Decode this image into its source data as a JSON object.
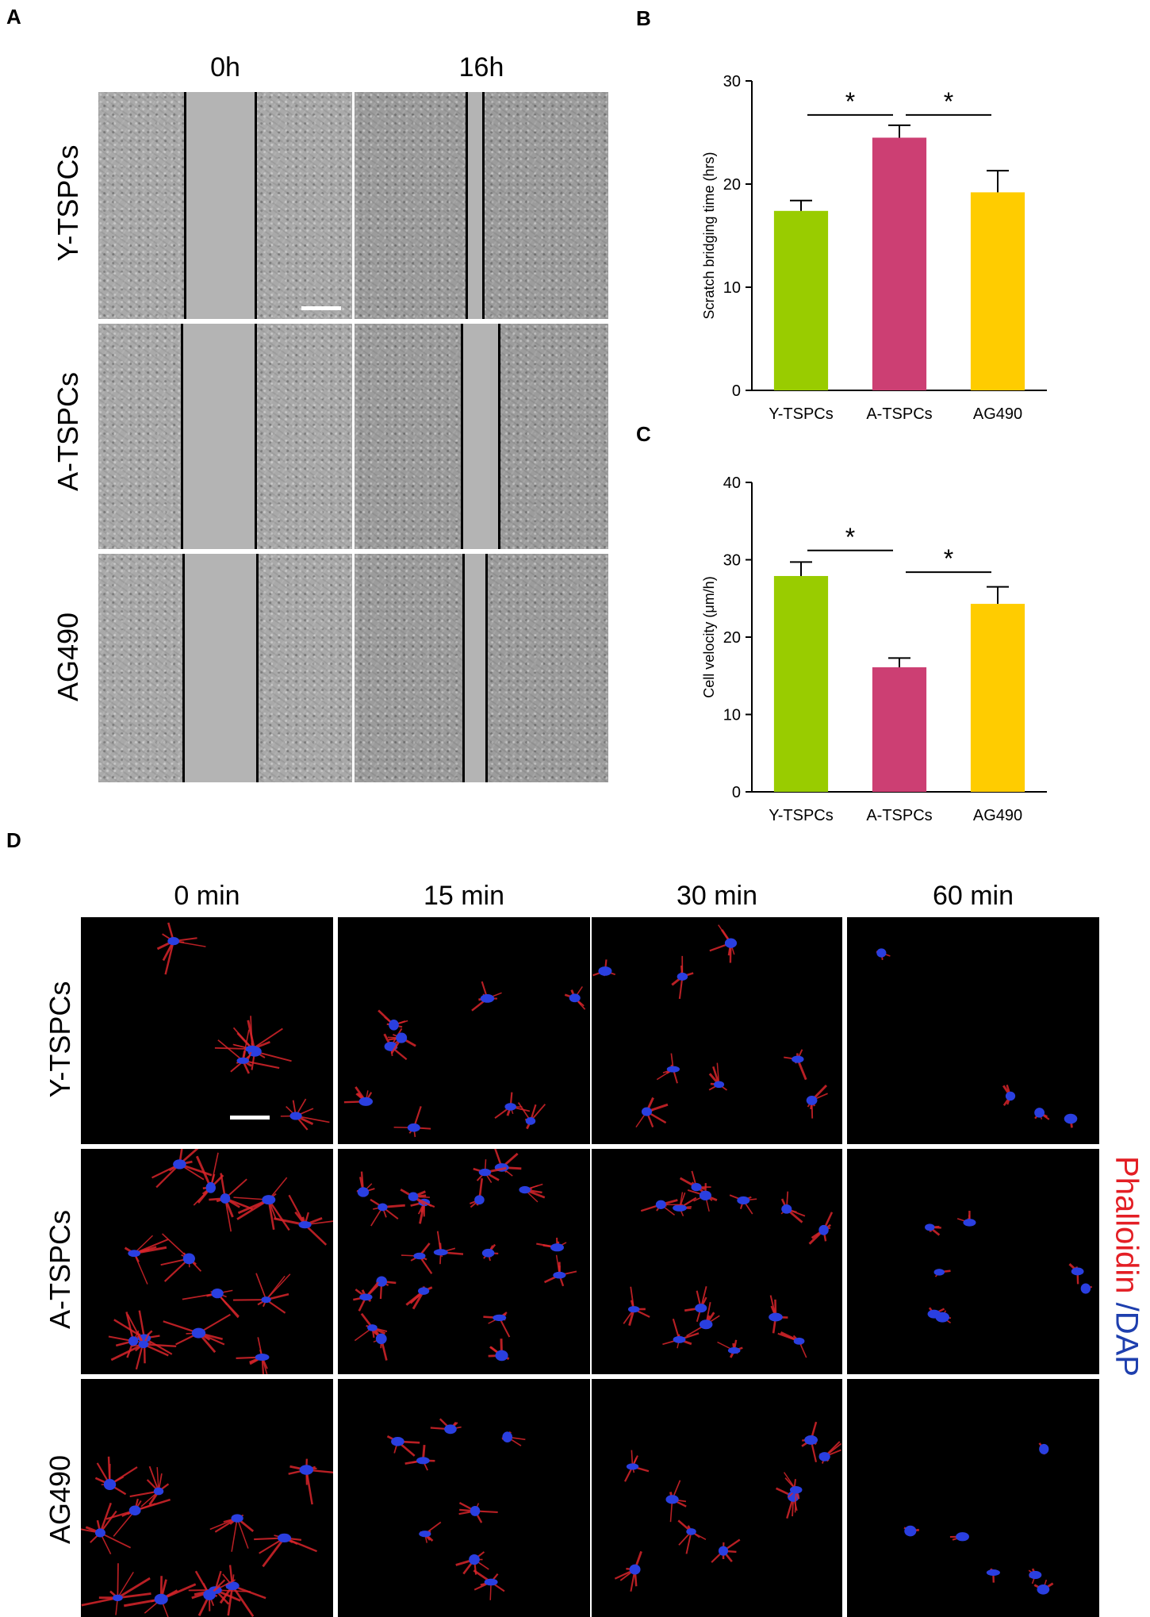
{
  "panel_labels": {
    "a": "A",
    "b": "B",
    "c": "C",
    "d": "D"
  },
  "panel_a": {
    "columns": [
      "0h",
      "16h"
    ],
    "rows": [
      "Y-TSPCs",
      "A-TSPCs",
      "AG490"
    ]
  },
  "panel_d": {
    "columns": [
      "0 min",
      "15 min",
      "30 min",
      "60 min"
    ],
    "rows": [
      "Y-TSPCs",
      "A-TSPCs",
      "AG490"
    ],
    "stain_red": "Phalloidin",
    "stain_blue": "/DAP"
  },
  "colors": {
    "green": "#99cc00",
    "pink": "#cc3f73",
    "yellow": "#ffcc00",
    "phalloidin": "#e31e24",
    "dapi": "#1e3fae"
  },
  "chart_data": [
    {
      "type": "bar",
      "categories": [
        "Y-TSPCs",
        "A-TSPCs",
        "AG490"
      ],
      "values": [
        17.4,
        24.5,
        19.2
      ],
      "errors": [
        1.0,
        1.2,
        2.1
      ],
      "ylabel": "Scratch bridging time (hrs)",
      "ylim": [
        0,
        30
      ],
      "yticks": [
        0,
        10,
        20,
        30
      ],
      "significance": [
        {
          "from": 0,
          "to": 1,
          "value": 26.7,
          "label": "*"
        },
        {
          "from": 1,
          "to": 2,
          "value": 26.7,
          "label": "*"
        }
      ]
    },
    {
      "type": "bar",
      "categories": [
        "Y-TSPCs",
        "A-TSPCs",
        "AG490"
      ],
      "values": [
        27.9,
        16.1,
        24.3
      ],
      "errors": [
        1.8,
        1.2,
        2.2
      ],
      "ylabel": "Cell velocity (μm/h)",
      "ylim": [
        0,
        40
      ],
      "yticks": [
        0,
        10,
        20,
        30,
        40
      ],
      "significance": [
        {
          "from": 0,
          "to": 1,
          "value": 31.2,
          "label": "*"
        },
        {
          "from": 1,
          "to": 2,
          "value": 28.4,
          "label": "*"
        }
      ]
    }
  ]
}
